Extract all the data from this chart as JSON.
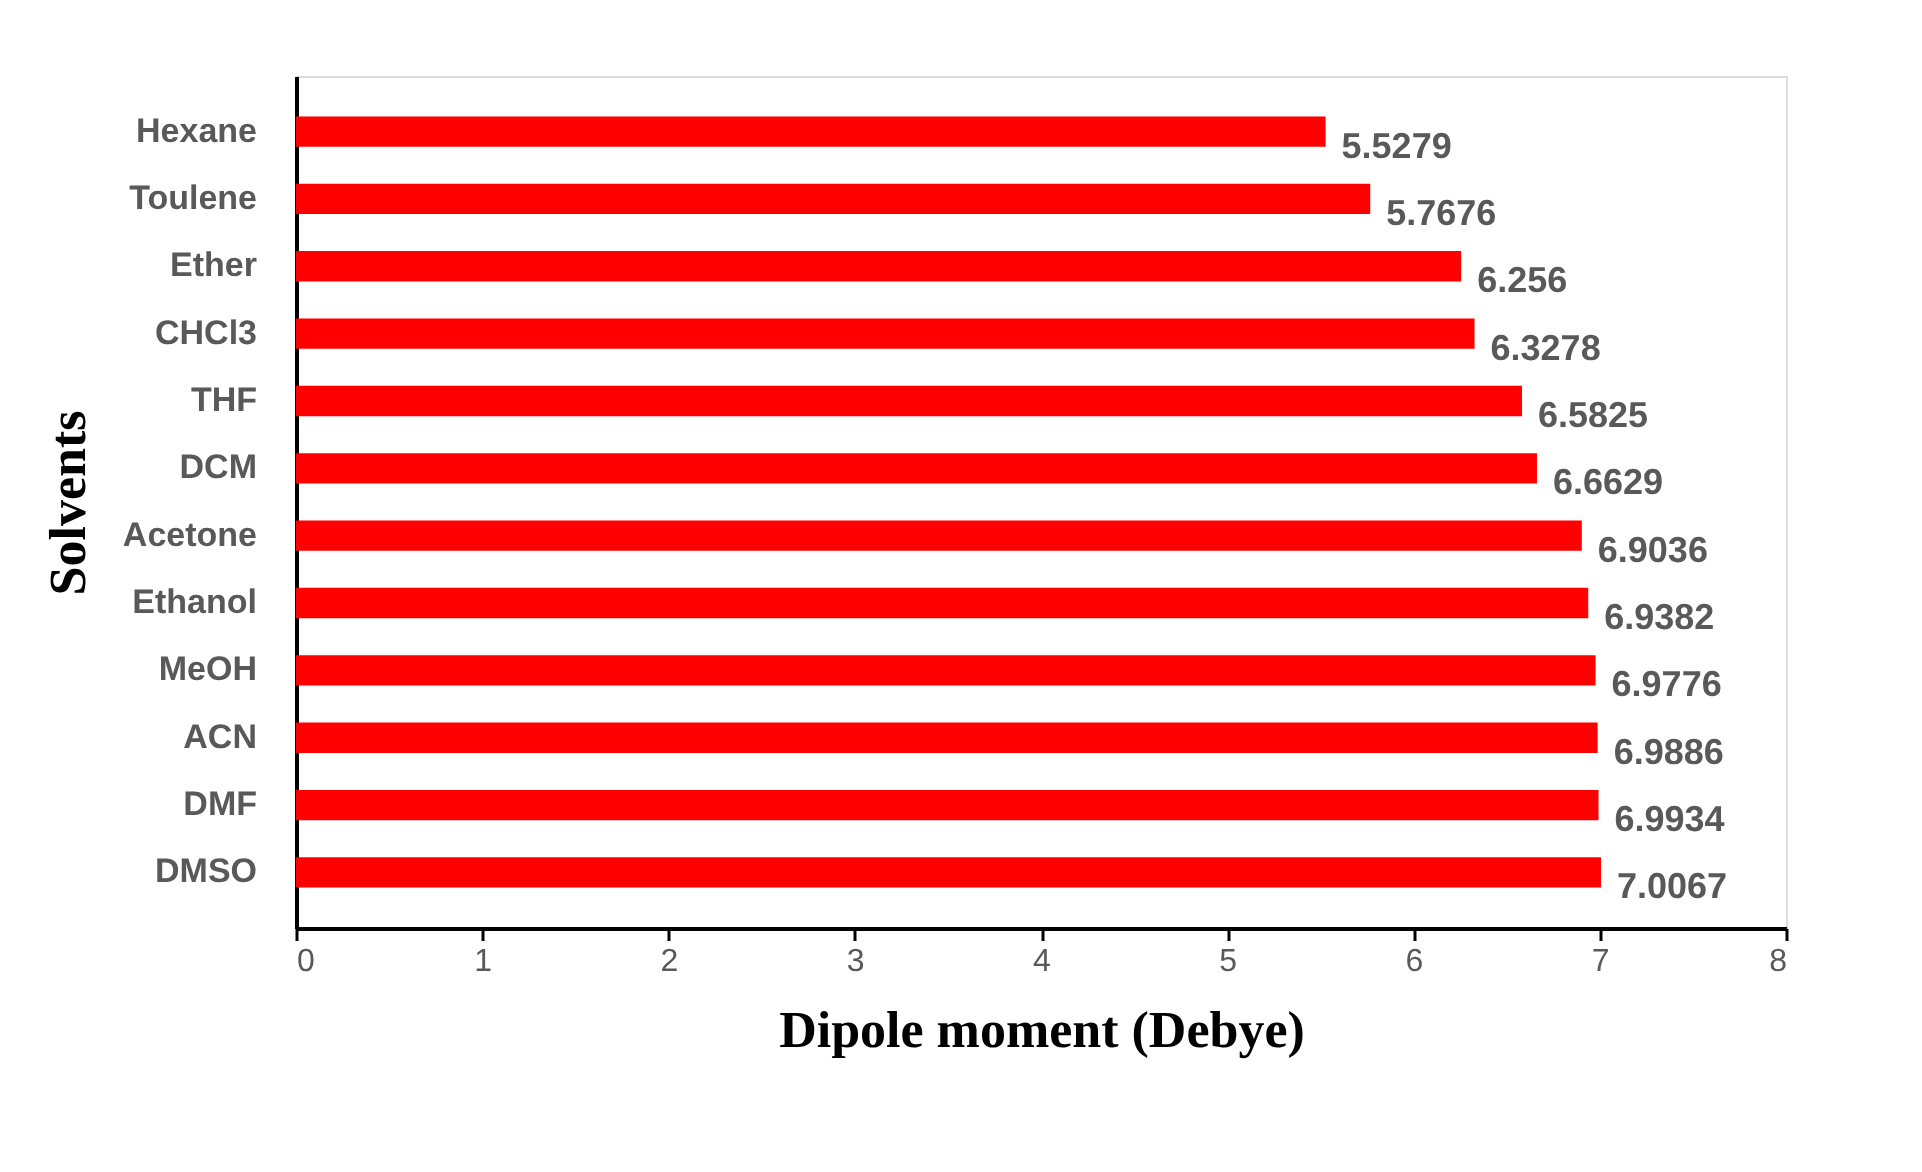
{
  "chart_data": {
    "type": "bar",
    "orientation": "horizontal",
    "xlabel": "Dipole moment (Debye)",
    "ylabel": "Solvents",
    "categories": [
      "Hexane",
      "Toulene",
      "Ether",
      "CHCl3",
      "THF",
      "DCM",
      "Acetone",
      "Ethanol",
      "MeOH",
      "ACN",
      "DMF",
      "DMSO"
    ],
    "values": [
      5.5279,
      5.7676,
      6.256,
      6.3278,
      6.5825,
      6.6629,
      6.9036,
      6.9382,
      6.9776,
      6.9886,
      6.9934,
      7.0067
    ],
    "color": "#ff0000",
    "xlim": [
      0,
      8
    ],
    "xticks": [
      0,
      1,
      2,
      3,
      4,
      5,
      6,
      7,
      8
    ],
    "data_labels": true,
    "grid": false,
    "legend": false
  }
}
